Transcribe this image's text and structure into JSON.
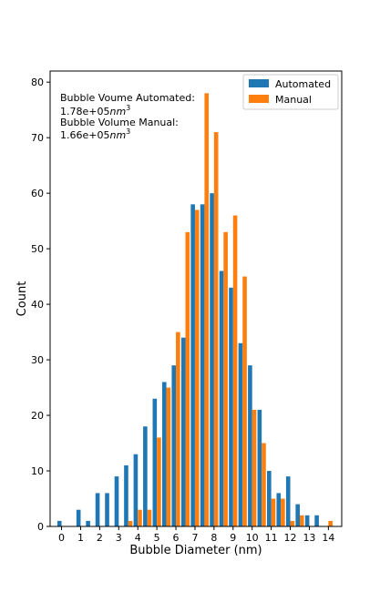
{
  "chart_data": {
    "type": "bar",
    "x": [
      0,
      0.5,
      1,
      1.5,
      2,
      2.5,
      3,
      3.5,
      4,
      4.5,
      5,
      5.5,
      6,
      6.5,
      7,
      7.5,
      8,
      8.5,
      9,
      9.5,
      10,
      10.5,
      11,
      11.5,
      12,
      12.5,
      13,
      13.5,
      14
    ],
    "series": [
      {
        "name": "Automated",
        "color": "#1f77b4",
        "values": [
          1,
          0,
          3,
          1,
          6,
          6,
          9,
          11,
          13,
          18,
          23,
          26,
          29,
          34,
          58,
          58,
          60,
          46,
          43,
          33,
          29,
          21,
          10,
          6,
          9,
          4,
          2,
          2,
          0
        ]
      },
      {
        "name": "Manual",
        "color": "#ff7f0e",
        "values": [
          0,
          0,
          0,
          0,
          0,
          0,
          0,
          1,
          3,
          3,
          16,
          25,
          35,
          53,
          57,
          78,
          71,
          53,
          56,
          45,
          21,
          15,
          5,
          5,
          1,
          2,
          0,
          0,
          1
        ]
      }
    ],
    "xticks": [
      "0",
      "1",
      "2",
      "3",
      "4",
      "5",
      "6",
      "7",
      "8",
      "9",
      "10",
      "11",
      "12",
      "13",
      "14"
    ],
    "yticks": [
      "0",
      "10",
      "20",
      "30",
      "40",
      "50",
      "60",
      "70",
      "80"
    ],
    "xlabel": "Bubble Diameter (nm)",
    "ylabel": "Count",
    "xlim": [
      -0.6,
      14.7
    ],
    "ylim": [
      0,
      82
    ],
    "legend_position": "top-right",
    "annotations": [
      {
        "label": "Bubble Voume Automated:",
        "value": "1.78e+05",
        "unit": "nm",
        "exponent": "3"
      },
      {
        "label": "Bubble Volume Manual:",
        "value": "1.66e+05",
        "unit": "nm",
        "exponent": "3"
      }
    ]
  }
}
